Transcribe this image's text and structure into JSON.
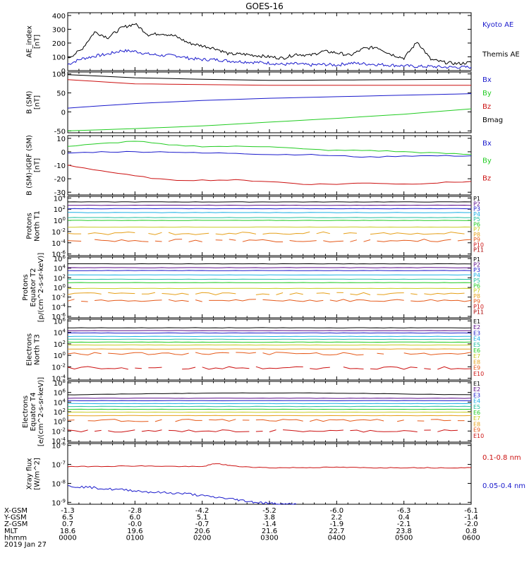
{
  "title": "GOES-16",
  "colors": {
    "axis": "#000000",
    "blue": "#1a1acc",
    "green": "#22cc22",
    "red": "#cc1111",
    "black": "#000000"
  },
  "chart_data": [
    {
      "type": "line",
      "id": "ae",
      "ylabel": [
        "AE_index",
        "[nT]"
      ],
      "ylim": [
        0,
        420
      ],
      "yticks": [
        0,
        100,
        200,
        300,
        400
      ],
      "ytick_labels": [
        "0",
        "100",
        "200",
        "300",
        "400"
      ],
      "series": [
        {
          "name": "Kyoto AE",
          "color": "#1a1acc",
          "x": [
            0,
            0.2,
            0.4,
            0.6,
            0.8,
            1.0,
            1.2,
            1.4,
            1.6,
            1.8,
            2.0,
            2.2,
            2.4,
            2.6,
            2.8,
            3.0,
            3.2,
            3.4,
            3.6,
            3.8,
            4.0,
            4.2,
            4.4,
            4.6,
            4.8,
            5.0,
            5.2,
            5.4,
            5.6,
            5.8,
            6.0
          ],
          "y": [
            45,
            85,
            105,
            120,
            145,
            140,
            120,
            110,
            110,
            90,
            80,
            80,
            70,
            65,
            60,
            55,
            45,
            50,
            40,
            45,
            40,
            55,
            50,
            45,
            40,
            35,
            30,
            30,
            25,
            25,
            25
          ]
        },
        {
          "name": "Themis AE",
          "color": "#000000",
          "x": [
            0,
            0.2,
            0.4,
            0.6,
            0.8,
            1.0,
            1.2,
            1.4,
            1.6,
            1.8,
            2.0,
            2.2,
            2.4,
            2.6,
            2.8,
            3.0,
            3.2,
            3.4,
            3.6,
            3.8,
            4.0,
            4.2,
            4.4,
            4.6,
            4.8,
            5.0,
            5.2,
            5.4,
            5.6,
            5.8,
            6.0
          ],
          "y": [
            90,
            150,
            280,
            240,
            310,
            340,
            260,
            270,
            250,
            200,
            180,
            160,
            120,
            120,
            110,
            100,
            90,
            120,
            110,
            140,
            130,
            110,
            160,
            170,
            120,
            90,
            210,
            80,
            60,
            50,
            60
          ]
        }
      ]
    },
    {
      "type": "line",
      "id": "bsm",
      "ylabel": [
        "B (SM)",
        "[nT]"
      ],
      "ylim": [
        -55,
        105
      ],
      "yticks": [
        -50,
        0,
        50,
        100
      ],
      "ytick_labels": [
        "-50",
        "0",
        "50",
        "100"
      ],
      "series": [
        {
          "name": "Bx",
          "color": "#1a1acc",
          "x": [
            0,
            1,
            2,
            3,
            4,
            5,
            6
          ],
          "y": [
            10,
            22,
            30,
            36,
            40,
            44,
            48
          ]
        },
        {
          "name": "By",
          "color": "#22cc22",
          "x": [
            0,
            1,
            2,
            3,
            4,
            5,
            6
          ],
          "y": [
            -50,
            -44,
            -37,
            -27,
            -17,
            -6,
            8
          ]
        },
        {
          "name": "Bz",
          "color": "#cc1111",
          "x": [
            0,
            1,
            2,
            3,
            4,
            5,
            6
          ],
          "y": [
            85,
            74,
            72,
            70,
            70,
            70,
            70
          ]
        },
        {
          "name": "Bmag",
          "color": "#000000",
          "x": [
            0,
            1,
            2,
            3,
            4,
            5,
            6
          ],
          "y": [
            98,
            90,
            86,
            83,
            84,
            85,
            86
          ]
        }
      ]
    },
    {
      "type": "line",
      "id": "bigrf",
      "ylabel": [
        "B (SM)-IGRF (SM)",
        "[nT]"
      ],
      "ylim": [
        -32,
        12
      ],
      "yticks": [
        -30,
        -20,
        -10,
        0,
        10
      ],
      "ytick_labels": [
        "-30",
        "-20",
        "-10",
        "0",
        "10"
      ],
      "series": [
        {
          "name": "Bx",
          "color": "#1a1acc",
          "x": [
            0,
            0.5,
            1,
            1.5,
            2,
            2.5,
            3,
            3.5,
            4,
            4.5,
            5,
            5.5,
            6
          ],
          "y": [
            -1,
            0,
            0,
            0,
            -1,
            -1,
            -2,
            -2,
            -3,
            -4,
            -3,
            -3,
            -3
          ]
        },
        {
          "name": "By",
          "color": "#22cc22",
          "x": [
            0,
            0.5,
            1,
            1.5,
            2,
            2.5,
            3,
            3.5,
            4,
            4.5,
            5,
            5.5,
            6
          ],
          "y": [
            4,
            6,
            8,
            5,
            4,
            4,
            4,
            2,
            1,
            1,
            0,
            -1,
            -2
          ]
        },
        {
          "name": "Bz",
          "color": "#cc1111",
          "x": [
            0,
            0.5,
            1,
            1.5,
            2,
            2.5,
            3,
            3.5,
            4,
            4.5,
            5,
            5.5,
            6
          ],
          "y": [
            -10,
            -14,
            -18,
            -21,
            -21,
            -21,
            -22,
            -24,
            -24,
            -23,
            -24,
            -23,
            -22
          ]
        }
      ]
    },
    {
      "type": "line",
      "id": "prot_n",
      "log": true,
      "ylabel": [
        "Protons",
        "North T1"
      ],
      "ylim_exp": [
        -6.3,
        4.3
      ],
      "ytick_exp": [
        -6,
        -4,
        -2,
        0,
        2,
        4
      ],
      "ytick_labels": [
        "10^-6",
        "10^-4",
        "10^-2",
        "10^0",
        "10^2",
        "10^4"
      ],
      "channels": [
        "P1",
        "P2",
        "P3",
        "P4",
        "P5",
        "P6",
        "P7",
        "P8",
        "P9",
        "P10",
        "P11"
      ],
      "channel_colors": [
        "#000000",
        "#5a0a8a",
        "#1a1acc",
        "#1ab0e6",
        "#22c0a0",
        "#22cc22",
        "#c8cc22",
        "#e6a01a",
        "#e65a1a",
        "#cc1111",
        "#aa0000"
      ],
      "levels": [
        3.3,
        2.7,
        2.1,
        1.4,
        0.5,
        0.0,
        -1.2,
        -2.3,
        -3.6
      ]
    },
    {
      "type": "line",
      "id": "prot_e",
      "log": true,
      "ylabel": [
        "Protons",
        "Equator T2",
        "[p/(cm^2-s-sr-keV)]"
      ],
      "ylim_exp": [
        -6.3,
        6.3
      ],
      "ytick_exp": [
        -6,
        -4,
        -2,
        0,
        2,
        4,
        6
      ],
      "ytick_labels": [
        "10^-6",
        "10^-4",
        "10^-2",
        "10^0",
        "10^2",
        "10^4",
        "10^6"
      ],
      "channels": [
        "P1",
        "P2",
        "P3",
        "P4",
        "P5",
        "P6",
        "P7",
        "P8",
        "P9",
        "P10",
        "P11"
      ],
      "channel_colors": [
        "#000000",
        "#5a0a8a",
        "#1a1acc",
        "#1ab0e6",
        "#22c0a0",
        "#22cc22",
        "#c8cc22",
        "#e6a01a",
        "#e65a1a",
        "#cc1111",
        "#aa0000"
      ],
      "levels": [
        4.9,
        4.1,
        3.5,
        2.6,
        1.7,
        1.0,
        -0.2,
        -1.3,
        -2.7
      ]
    },
    {
      "type": "line",
      "id": "elec_n",
      "log": true,
      "ylabel": [
        "Electrons",
        "North T3"
      ],
      "ylim_exp": [
        -4.3,
        6.3
      ],
      "ytick_exp": [
        -4,
        -2,
        0,
        2,
        4,
        6
      ],
      "ytick_labels": [
        "10^-4",
        "10^-2",
        "10^0",
        "10^2",
        "10^4",
        "10^6"
      ],
      "channels": [
        "E1",
        "E2",
        "E3",
        "E4",
        "E5",
        "E6",
        "E7",
        "E8",
        "E9",
        "E10"
      ],
      "channel_colors": [
        "#000000",
        "#5a0a8a",
        "#1a1acc",
        "#1ab0e6",
        "#22c0a0",
        "#22cc22",
        "#c8cc22",
        "#e6a01a",
        "#e65a1a",
        "#cc1111"
      ],
      "levels": [
        4.8,
        4.3,
        3.9,
        3.3,
        2.8,
        2.3,
        1.8,
        1.1,
        0.3,
        -2.2
      ]
    },
    {
      "type": "line",
      "id": "elec_e",
      "log": true,
      "ylabel": [
        "Electrons",
        "Equator T4",
        "[e/(cm^2-s-sr-keV)]"
      ],
      "ylim_exp": [
        -4.3,
        8.3
      ],
      "ytick_exp": [
        -4,
        -2,
        0,
        2,
        4,
        6,
        8
      ],
      "ytick_labels": [
        "10^-4",
        "10^-2",
        "10^0",
        "10^2",
        "10^4",
        "10^6",
        "10^8"
      ],
      "channels": [
        "E1",
        "E2",
        "E3",
        "E4",
        "E5",
        "E6",
        "E7",
        "E8",
        "E9",
        "E10"
      ],
      "channel_colors": [
        "#000000",
        "#5a0a8a",
        "#1a1acc",
        "#1ab0e6",
        "#22c0a0",
        "#22cc22",
        "#c8cc22",
        "#e6a01a",
        "#e65a1a",
        "#cc1111"
      ],
      "levels": [
        5.5,
        4.8,
        4.3,
        3.7,
        3.1,
        2.5,
        1.9,
        1.2,
        0.2,
        -2.0
      ]
    },
    {
      "type": "line",
      "id": "xray",
      "log": true,
      "ylabel": [
        "Xray flux",
        "[W/m^2]"
      ],
      "ylim_exp": [
        -9.1,
        -5.9
      ],
      "ytick_exp": [
        -9,
        -8,
        -7,
        -6
      ],
      "ytick_labels": [
        "10^-9",
        "10^-8",
        "10^-7",
        "10^-6"
      ],
      "series": [
        {
          "name": "0.1-0.8 nm",
          "color": "#cc1111",
          "x": [
            0,
            0.5,
            1,
            1.5,
            2,
            2.2,
            2.5,
            3,
            3.5,
            4,
            4.5,
            5,
            5.5,
            6
          ],
          "y_exp": [
            -7.12,
            -7.1,
            -7.08,
            -7.1,
            -7.12,
            -6.95,
            -7.1,
            -7.18,
            -7.17,
            -7.15,
            -7.18,
            -7.17,
            -7.18,
            -7.17
          ]
        },
        {
          "name": "0.05-0.4 nm",
          "color": "#1a1acc",
          "x": [
            0,
            0.3,
            0.6,
            0.9,
            1.2,
            1.5,
            1.8,
            2.1,
            2.4,
            2.6,
            2.8,
            3.0,
            3.2,
            3.4
          ],
          "y_exp": [
            -8.15,
            -8.2,
            -8.3,
            -8.35,
            -8.45,
            -8.5,
            -8.55,
            -8.7,
            -8.8,
            -8.9,
            -9.0,
            -9.05,
            -9.1,
            -9.1
          ]
        }
      ]
    }
  ],
  "xaxis": {
    "tick_hours": [
      0,
      1,
      2,
      3,
      4,
      5,
      6
    ],
    "rows": [
      {
        "label": "X-GSM",
        "values": [
          "-1.3",
          "-2.8",
          "-4.2",
          "-5.2",
          "-6.0",
          "-6.3",
          "-6.1"
        ]
      },
      {
        "label": "Y-GSM",
        "values": [
          "6.5",
          "6.0",
          "5.1",
          "3.8",
          "2.2",
          "0.4",
          "-1.4"
        ]
      },
      {
        "label": "Z-GSM",
        "values": [
          "0.7",
          "-0.0",
          "-0.7",
          "-1.4",
          "-1.9",
          "-2.1",
          "-2.0"
        ]
      },
      {
        "label": "MLT",
        "values": [
          "18.6",
          "19.6",
          "20.6",
          "21.6",
          "22.7",
          "23.8",
          "0.8"
        ]
      },
      {
        "label": "hhmm",
        "values": [
          "0000",
          "0100",
          "0200",
          "0300",
          "0400",
          "0500",
          "0600"
        ]
      }
    ],
    "date": "2019 Jan 27"
  }
}
